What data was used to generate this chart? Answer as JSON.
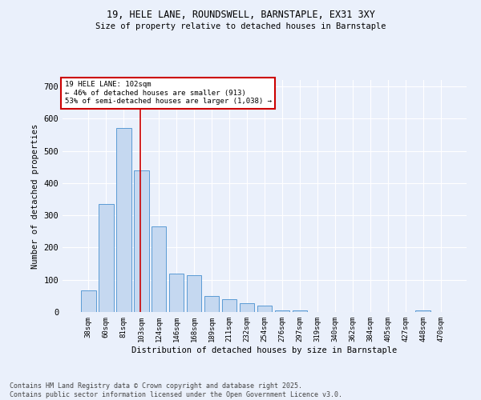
{
  "title1": "19, HELE LANE, ROUNDSWELL, BARNSTAPLE, EX31 3XY",
  "title2": "Size of property relative to detached houses in Barnstaple",
  "xlabel": "Distribution of detached houses by size in Barnstaple",
  "ylabel": "Number of detached properties",
  "categories": [
    "38sqm",
    "60sqm",
    "81sqm",
    "103sqm",
    "124sqm",
    "146sqm",
    "168sqm",
    "189sqm",
    "211sqm",
    "232sqm",
    "254sqm",
    "276sqm",
    "297sqm",
    "319sqm",
    "340sqm",
    "362sqm",
    "384sqm",
    "405sqm",
    "427sqm",
    "448sqm",
    "470sqm"
  ],
  "values": [
    68,
    335,
    572,
    440,
    265,
    120,
    115,
    50,
    40,
    28,
    20,
    5,
    5,
    0,
    0,
    0,
    0,
    0,
    0,
    5,
    0
  ],
  "bar_color": "#c5d8f0",
  "bar_edge_color": "#5b9bd5",
  "annotation_text": "19 HELE LANE: 102sqm\n← 46% of detached houses are smaller (913)\n53% of semi-detached houses are larger (1,038) →",
  "annotation_box_color": "#ffffff",
  "annotation_box_edge": "#cc0000",
  "red_line_color": "#cc0000",
  "ylim": [
    0,
    720
  ],
  "yticks": [
    0,
    100,
    200,
    300,
    400,
    500,
    600,
    700
  ],
  "footer": "Contains HM Land Registry data © Crown copyright and database right 2025.\nContains public sector information licensed under the Open Government Licence v3.0.",
  "bg_color": "#eaf0fb",
  "plot_bg_color": "#eaf0fb"
}
